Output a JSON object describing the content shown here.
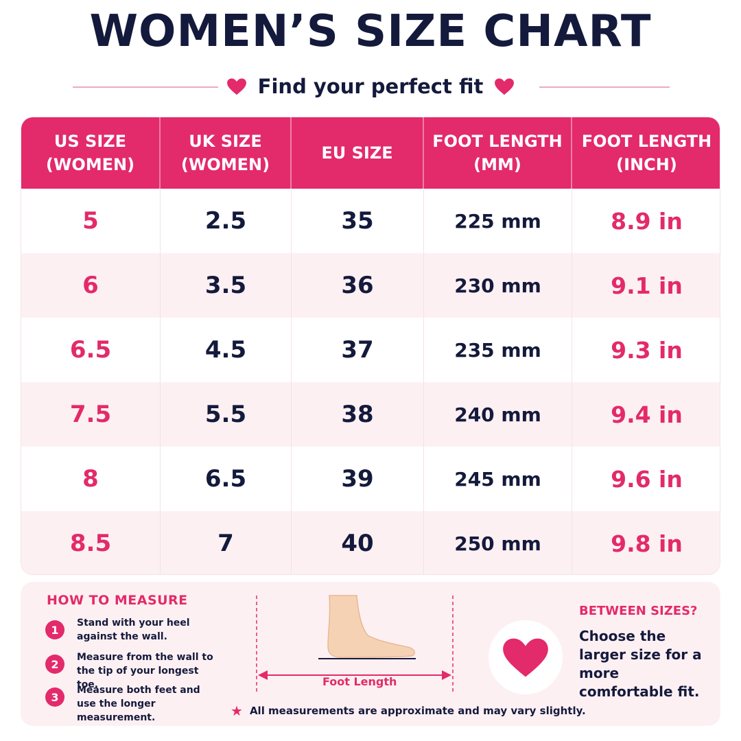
{
  "header": {
    "title": "WOMEN’S SIZE CHART",
    "subtitle": "Find your perfect fit"
  },
  "colors": {
    "accent": "#e32a6a",
    "navy": "#141a3c",
    "row_alt": "#fdf0f3"
  },
  "table": {
    "columns": [
      "US SIZE\n(WOMEN)",
      "UK SIZE\n(WOMEN)",
      "EU SIZE",
      "FOOT LENGTH\n(MM)",
      "FOOT LENGTH\n(INCH)"
    ],
    "rows": [
      {
        "us": "5",
        "uk": "2.5",
        "eu": "35",
        "mm": "225 mm",
        "inch": "8.9 in"
      },
      {
        "us": "6",
        "uk": "3.5",
        "eu": "36",
        "mm": "230 mm",
        "inch": "9.1 in"
      },
      {
        "us": "6.5",
        "uk": "4.5",
        "eu": "37",
        "mm": "235 mm",
        "inch": "9.3 in"
      },
      {
        "us": "7.5",
        "uk": "5.5",
        "eu": "38",
        "mm": "240 mm",
        "inch": "9.4 in"
      },
      {
        "us": "8",
        "uk": "6.5",
        "eu": "39",
        "mm": "245 mm",
        "inch": "9.6 in"
      },
      {
        "us": "8.5",
        "uk": "7",
        "eu": "40",
        "mm": "250 mm",
        "inch": "9.8 in"
      }
    ]
  },
  "how_to_measure": {
    "title": "HOW TO MEASURE",
    "steps": [
      {
        "num": "1",
        "text": "Stand with your heel against the wall."
      },
      {
        "num": "2",
        "text": "Measure from the wall to the tip of your longest toe."
      },
      {
        "num": "3",
        "text": "Measure both feet and use the longer measurement."
      }
    ],
    "diagram_label": "Foot Length"
  },
  "between_sizes": {
    "title": "BETWEEN SIZES?",
    "text": "Choose the larger size for a more comfortable fit."
  },
  "note": {
    "icon": "star-icon",
    "text": "All measurements are approximate and may vary slightly."
  }
}
